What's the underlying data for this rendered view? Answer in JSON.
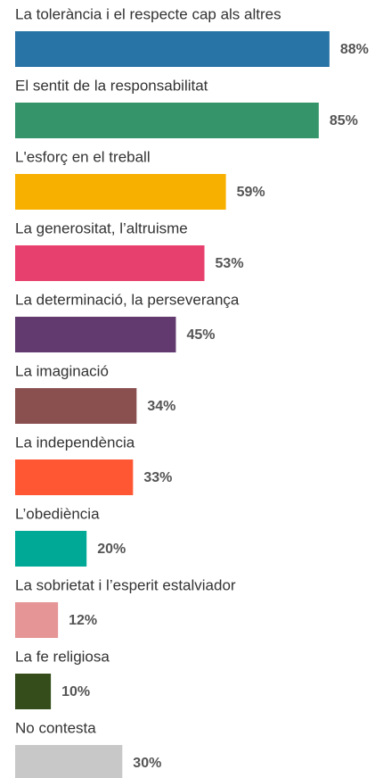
{
  "chart_data": {
    "type": "hbar",
    "categories": [
      "La tolerància i el respecte cap als altres",
      "El sentit de la responsabilitat",
      "L'esforç en el treball",
      "La generositat, l’altruisme",
      "La determinació, la perseverança",
      "La imaginació",
      "La independència",
      "L’obediència",
      "La sobrietat i l’esperit estalviador",
      "La fe religiosa",
      "No contesta"
    ],
    "values": [
      88,
      85,
      59,
      53,
      45,
      34,
      33,
      20,
      12,
      10,
      30
    ],
    "value_labels": [
      "88%",
      "85%",
      "59%",
      "53%",
      "45%",
      "34%",
      "33%",
      "20%",
      "12%",
      "10%",
      "30%"
    ],
    "colors": [
      "#2874a6",
      "#35946a",
      "#f8b000",
      "#e8406e",
      "#633a70",
      "#8a5050",
      "#ff5733",
      "#00a896",
      "#e59596",
      "#344d1a",
      "#c8c8c8"
    ],
    "xlim": [
      0,
      100
    ]
  }
}
